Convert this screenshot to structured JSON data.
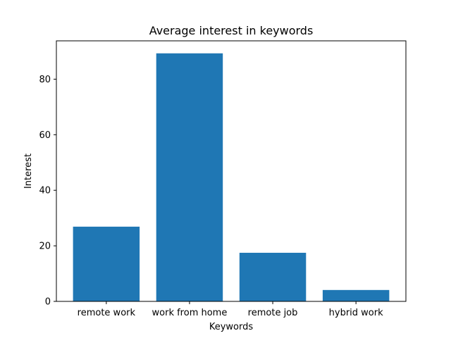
{
  "chart_data": {
    "type": "bar",
    "title": "Average interest in keywords",
    "xlabel": "Keywords",
    "ylabel": "Interest",
    "categories": [
      "remote work",
      "work from home",
      "remote job",
      "hybrid work"
    ],
    "values": [
      26.9,
      89.3,
      17.5,
      4.1
    ],
    "ylim": [
      0,
      93.8
    ],
    "yticks": [
      0,
      20,
      40,
      60,
      80
    ],
    "grid": false,
    "bar_color": "#1f77b4"
  }
}
